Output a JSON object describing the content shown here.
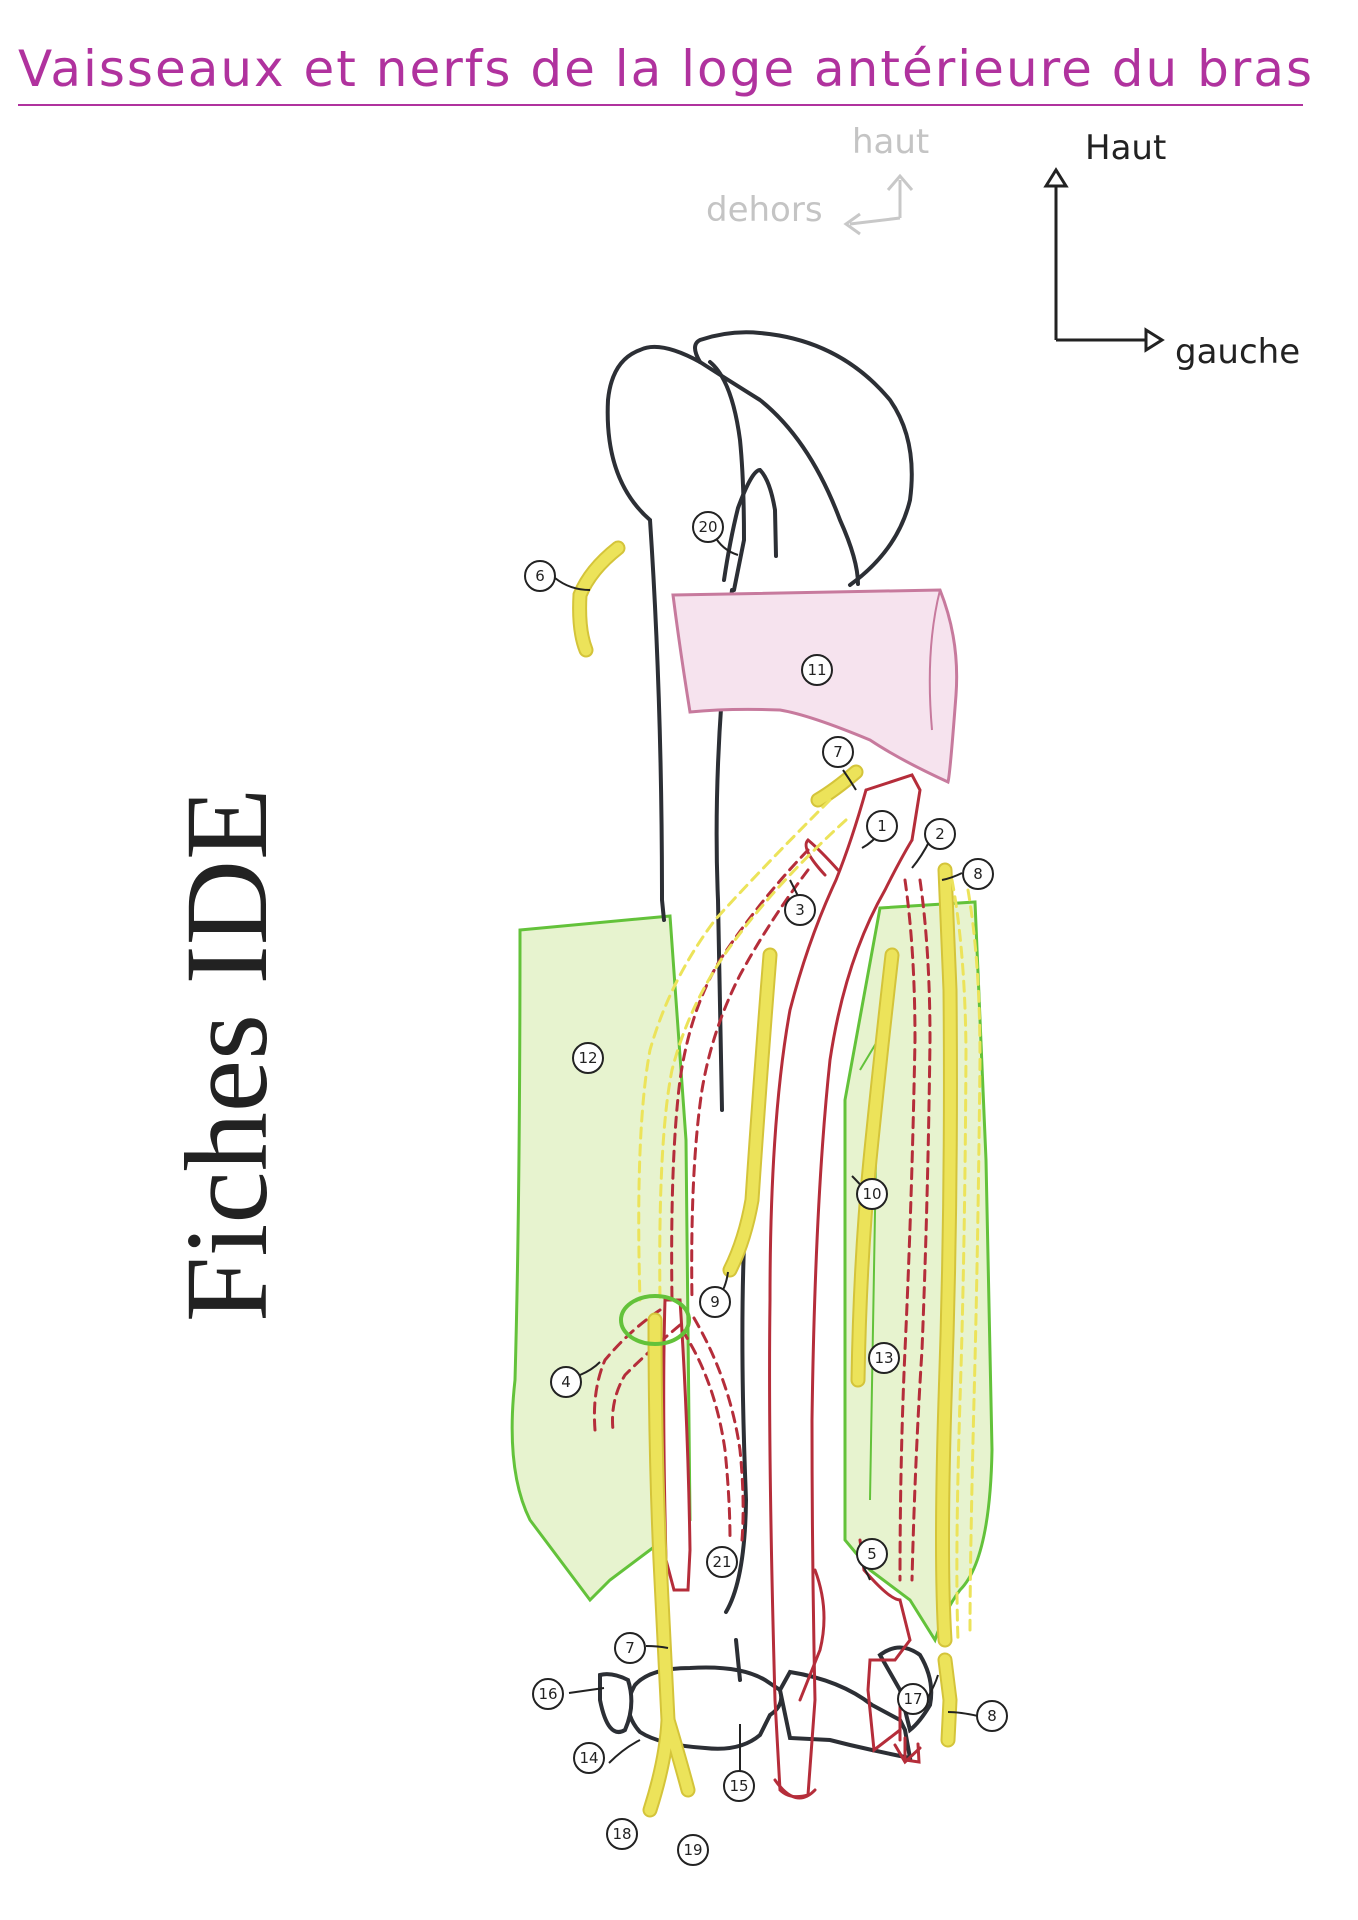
{
  "title": "Vaisseaux et nerfs de la loge antérieure du bras",
  "watermark": "Fiches IDE",
  "orientation_faint": {
    "up": "haut",
    "side": "dehors"
  },
  "orientation": {
    "up": "Haut",
    "side": "gauche"
  },
  "colors": {
    "bone": "#2c2f35",
    "artery": "#b52d3a",
    "nerve": "#ece35a",
    "muscle_outline": "#63c23a",
    "muscle_fill": "#e7f3cf",
    "tendon_outline": "#c77a9d",
    "tendon_fill": "#f6e3ee",
    "title": "#b0329e"
  },
  "labels": [
    {
      "id": "1",
      "text": "1"
    },
    {
      "id": "2",
      "text": "2"
    },
    {
      "id": "3",
      "text": "3"
    },
    {
      "id": "4",
      "text": "4"
    },
    {
      "id": "5",
      "text": "5"
    },
    {
      "id": "6",
      "text": "6"
    },
    {
      "id": "7a",
      "text": "7"
    },
    {
      "id": "7b",
      "text": "7"
    },
    {
      "id": "8a",
      "text": "8"
    },
    {
      "id": "8b",
      "text": "8"
    },
    {
      "id": "9",
      "text": "9"
    },
    {
      "id": "10",
      "text": "10"
    },
    {
      "id": "11",
      "text": "11"
    },
    {
      "id": "12",
      "text": "12"
    },
    {
      "id": "13",
      "text": "13"
    },
    {
      "id": "14",
      "text": "14"
    },
    {
      "id": "15",
      "text": "15"
    },
    {
      "id": "16",
      "text": "16"
    },
    {
      "id": "17",
      "text": "17"
    },
    {
      "id": "18",
      "text": "18"
    },
    {
      "id": "19",
      "text": "19"
    },
    {
      "id": "20",
      "text": "20"
    },
    {
      "id": "21",
      "text": "21"
    }
  ]
}
